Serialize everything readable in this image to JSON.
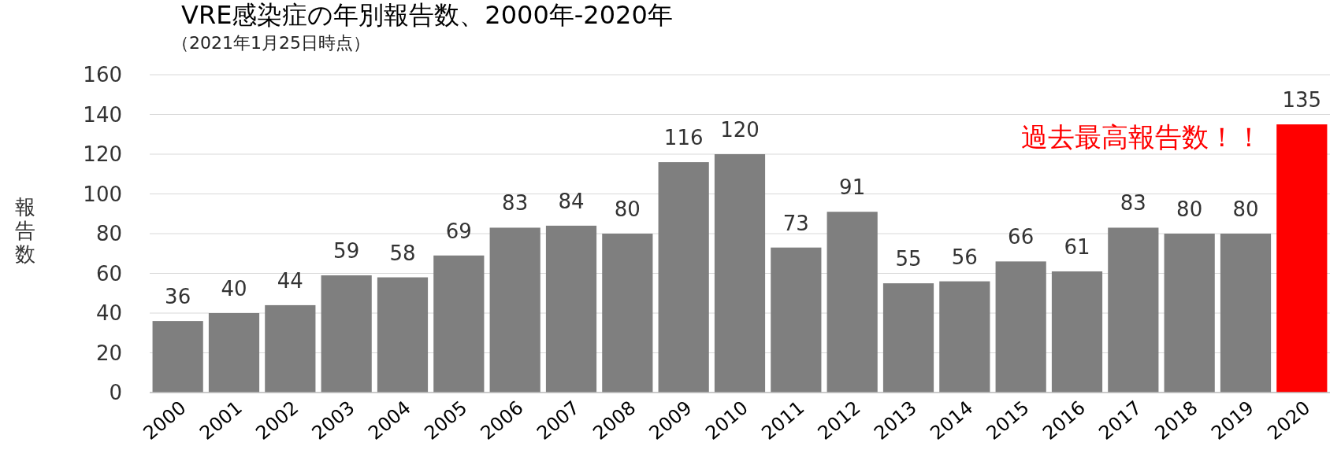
{
  "chart_data": {
    "type": "bar",
    "title": "VRE感染症の年別報告数、2000年-2020年",
    "subtitle": "（2021年1月25日時点）",
    "ylabel": "報告数",
    "categories": [
      "2000",
      "2001",
      "2002",
      "2003",
      "2004",
      "2005",
      "2006",
      "2007",
      "2008",
      "2009",
      "2010",
      "2011",
      "2012",
      "2013",
      "2014",
      "2015",
      "2016",
      "2017",
      "2018",
      "2019",
      "2020"
    ],
    "values": [
      36,
      40,
      44,
      59,
      58,
      69,
      83,
      84,
      80,
      116,
      120,
      73,
      91,
      55,
      56,
      66,
      61,
      83,
      80,
      80,
      135
    ],
    "colors": [
      "#7f7f7f",
      "#7f7f7f",
      "#7f7f7f",
      "#7f7f7f",
      "#7f7f7f",
      "#7f7f7f",
      "#7f7f7f",
      "#7f7f7f",
      "#7f7f7f",
      "#7f7f7f",
      "#7f7f7f",
      "#7f7f7f",
      "#7f7f7f",
      "#7f7f7f",
      "#7f7f7f",
      "#7f7f7f",
      "#7f7f7f",
      "#7f7f7f",
      "#7f7f7f",
      "#7f7f7f",
      "#ff0000"
    ],
    "ylim": [
      0,
      160
    ],
    "yticks": [
      0,
      20,
      40,
      60,
      80,
      100,
      120,
      140,
      160
    ],
    "grid": "y",
    "data_labels": true,
    "annotations": [
      {
        "text": "過去最高報告数！！",
        "x": "2020",
        "y": 135
      }
    ]
  }
}
